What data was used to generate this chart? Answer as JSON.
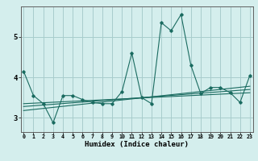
{
  "title": "",
  "xlabel": "Humidex (Indice chaleur)",
  "ylabel": "",
  "bg_color": "#d4eeed",
  "grid_color": "#a8cccc",
  "line_color": "#1a6b60",
  "x_ticks": [
    0,
    1,
    2,
    3,
    4,
    5,
    6,
    7,
    8,
    9,
    10,
    11,
    12,
    13,
    14,
    15,
    16,
    17,
    18,
    19,
    20,
    21,
    22,
    23
  ],
  "y_ticks": [
    3,
    4,
    5
  ],
  "ylim": [
    2.65,
    5.75
  ],
  "xlim": [
    -0.3,
    23.3
  ],
  "series1": {
    "x": [
      0,
      1,
      2,
      3,
      4,
      5,
      6,
      7,
      8,
      9,
      10,
      11,
      12,
      13,
      14,
      15,
      16,
      17,
      18,
      19,
      20,
      21,
      22,
      23
    ],
    "y": [
      4.15,
      3.55,
      3.35,
      2.88,
      3.55,
      3.55,
      3.45,
      3.38,
      3.35,
      3.35,
      3.65,
      4.6,
      3.5,
      3.35,
      5.35,
      5.15,
      5.55,
      4.3,
      3.6,
      3.75,
      3.75,
      3.62,
      3.38,
      4.05
    ]
  },
  "linear1": {
    "x": [
      0,
      23
    ],
    "y": [
      3.35,
      3.62
    ]
  },
  "linear2": {
    "x": [
      0,
      23
    ],
    "y": [
      3.28,
      3.7
    ]
  },
  "linear3": {
    "x": [
      0,
      23
    ],
    "y": [
      3.18,
      3.78
    ]
  }
}
